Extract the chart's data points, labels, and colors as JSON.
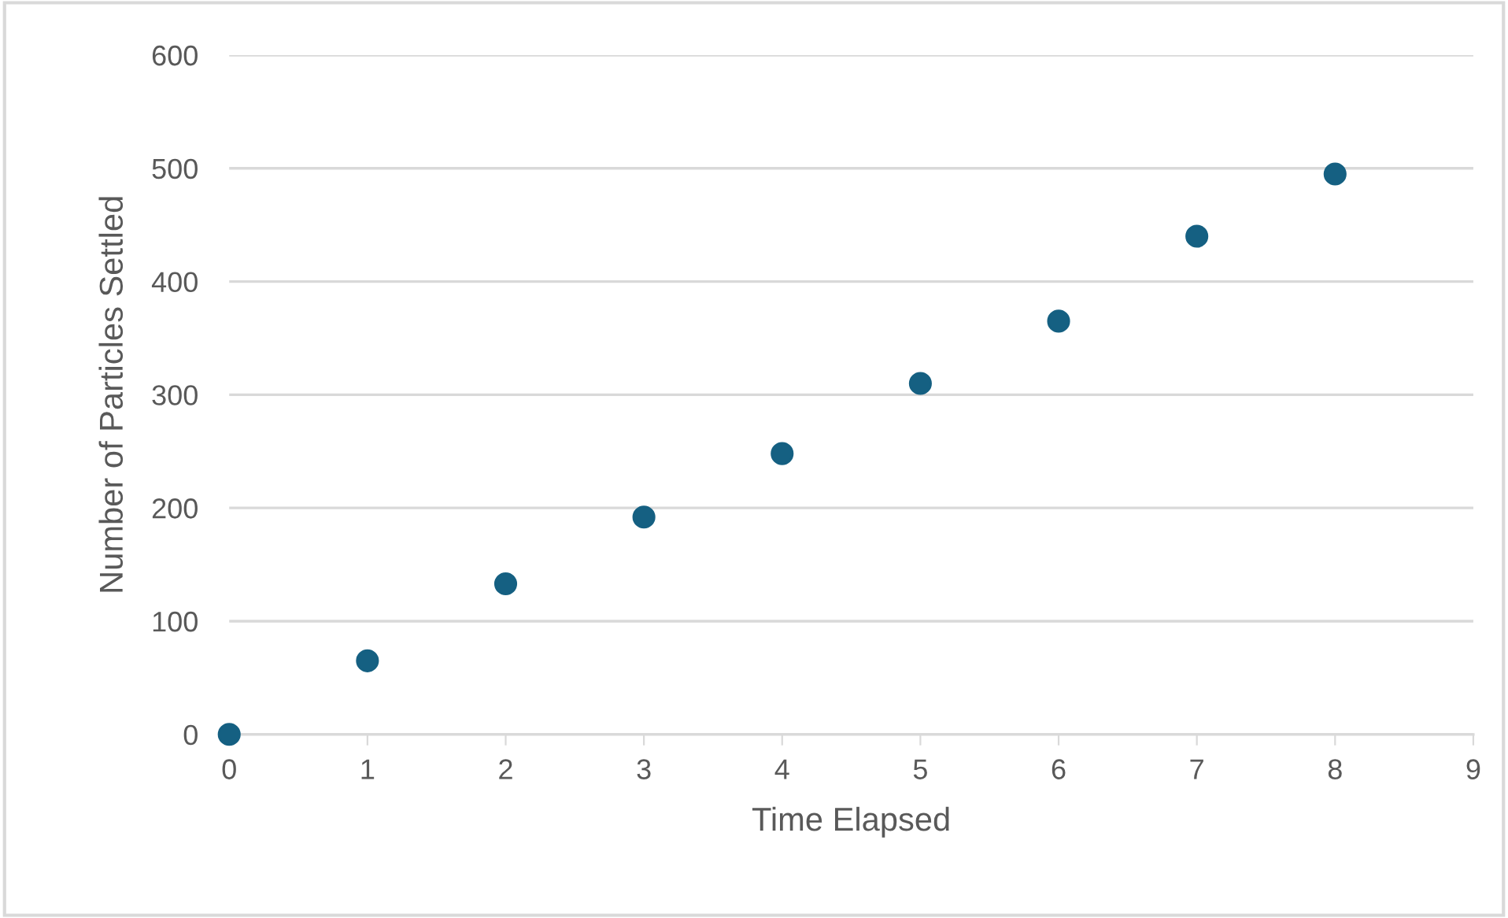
{
  "chart_data": {
    "type": "scatter",
    "xlabel": "Time Elapsed",
    "ylabel": "Number of Particles Settled",
    "x": [
      0,
      1,
      2,
      3,
      4,
      5,
      6,
      7,
      8
    ],
    "series": [
      {
        "color": "#156082",
        "values": [
          0,
          65,
          133,
          192,
          248,
          310,
          365,
          440,
          495
        ]
      }
    ],
    "xlim": [
      0,
      9
    ],
    "xticks": [
      0,
      1,
      2,
      3,
      4,
      5,
      6,
      7,
      8,
      9
    ],
    "ylim": [
      0,
      600
    ],
    "yticks": [
      0,
      100,
      200,
      300,
      400,
      500,
      600
    ],
    "grid": "y",
    "marker": "circle",
    "legend": false
  }
}
